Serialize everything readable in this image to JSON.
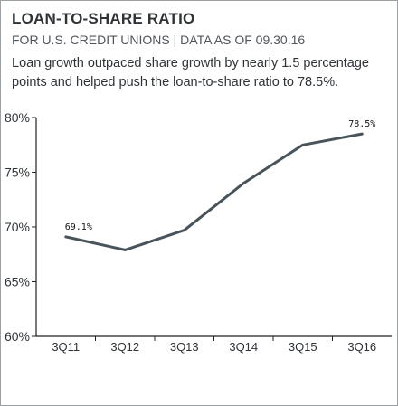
{
  "header": {
    "title": "LOAN-TO-SHARE RATIO",
    "subtitle": "FOR U.S. CREDIT UNIONS | DATA AS OF 09.30.16",
    "description": "Loan growth outpaced share growth by nearly 1.5 percentage points and helped push the loan-to-share ratio to 78.5%."
  },
  "colors": {
    "line": "#48535a",
    "axis": "#222222",
    "text": "#2e3338"
  },
  "chart_data": {
    "type": "line",
    "title": "LOAN-TO-SHARE RATIO",
    "subtitle": "FOR U.S. CREDIT UNIONS | DATA AS OF 09.30.16",
    "categories": [
      "3Q11",
      "3Q12",
      "3Q13",
      "3Q14",
      "3Q15",
      "3Q16"
    ],
    "series": [
      {
        "values": [
          69.1,
          67.9,
          69.7,
          74.0,
          77.5,
          78.5
        ]
      }
    ],
    "data_labels": [
      {
        "index": 0,
        "text": "69.1%"
      },
      {
        "index": 5,
        "text": "78.5%"
      }
    ],
    "y_ticks": [
      60,
      65,
      70,
      75,
      80
    ],
    "y_tick_labels": [
      "60%",
      "65%",
      "70%",
      "75%",
      "80%"
    ],
    "ylim": [
      60,
      80
    ],
    "xlabel": "",
    "ylabel": "",
    "grid": false,
    "legend": "none"
  }
}
